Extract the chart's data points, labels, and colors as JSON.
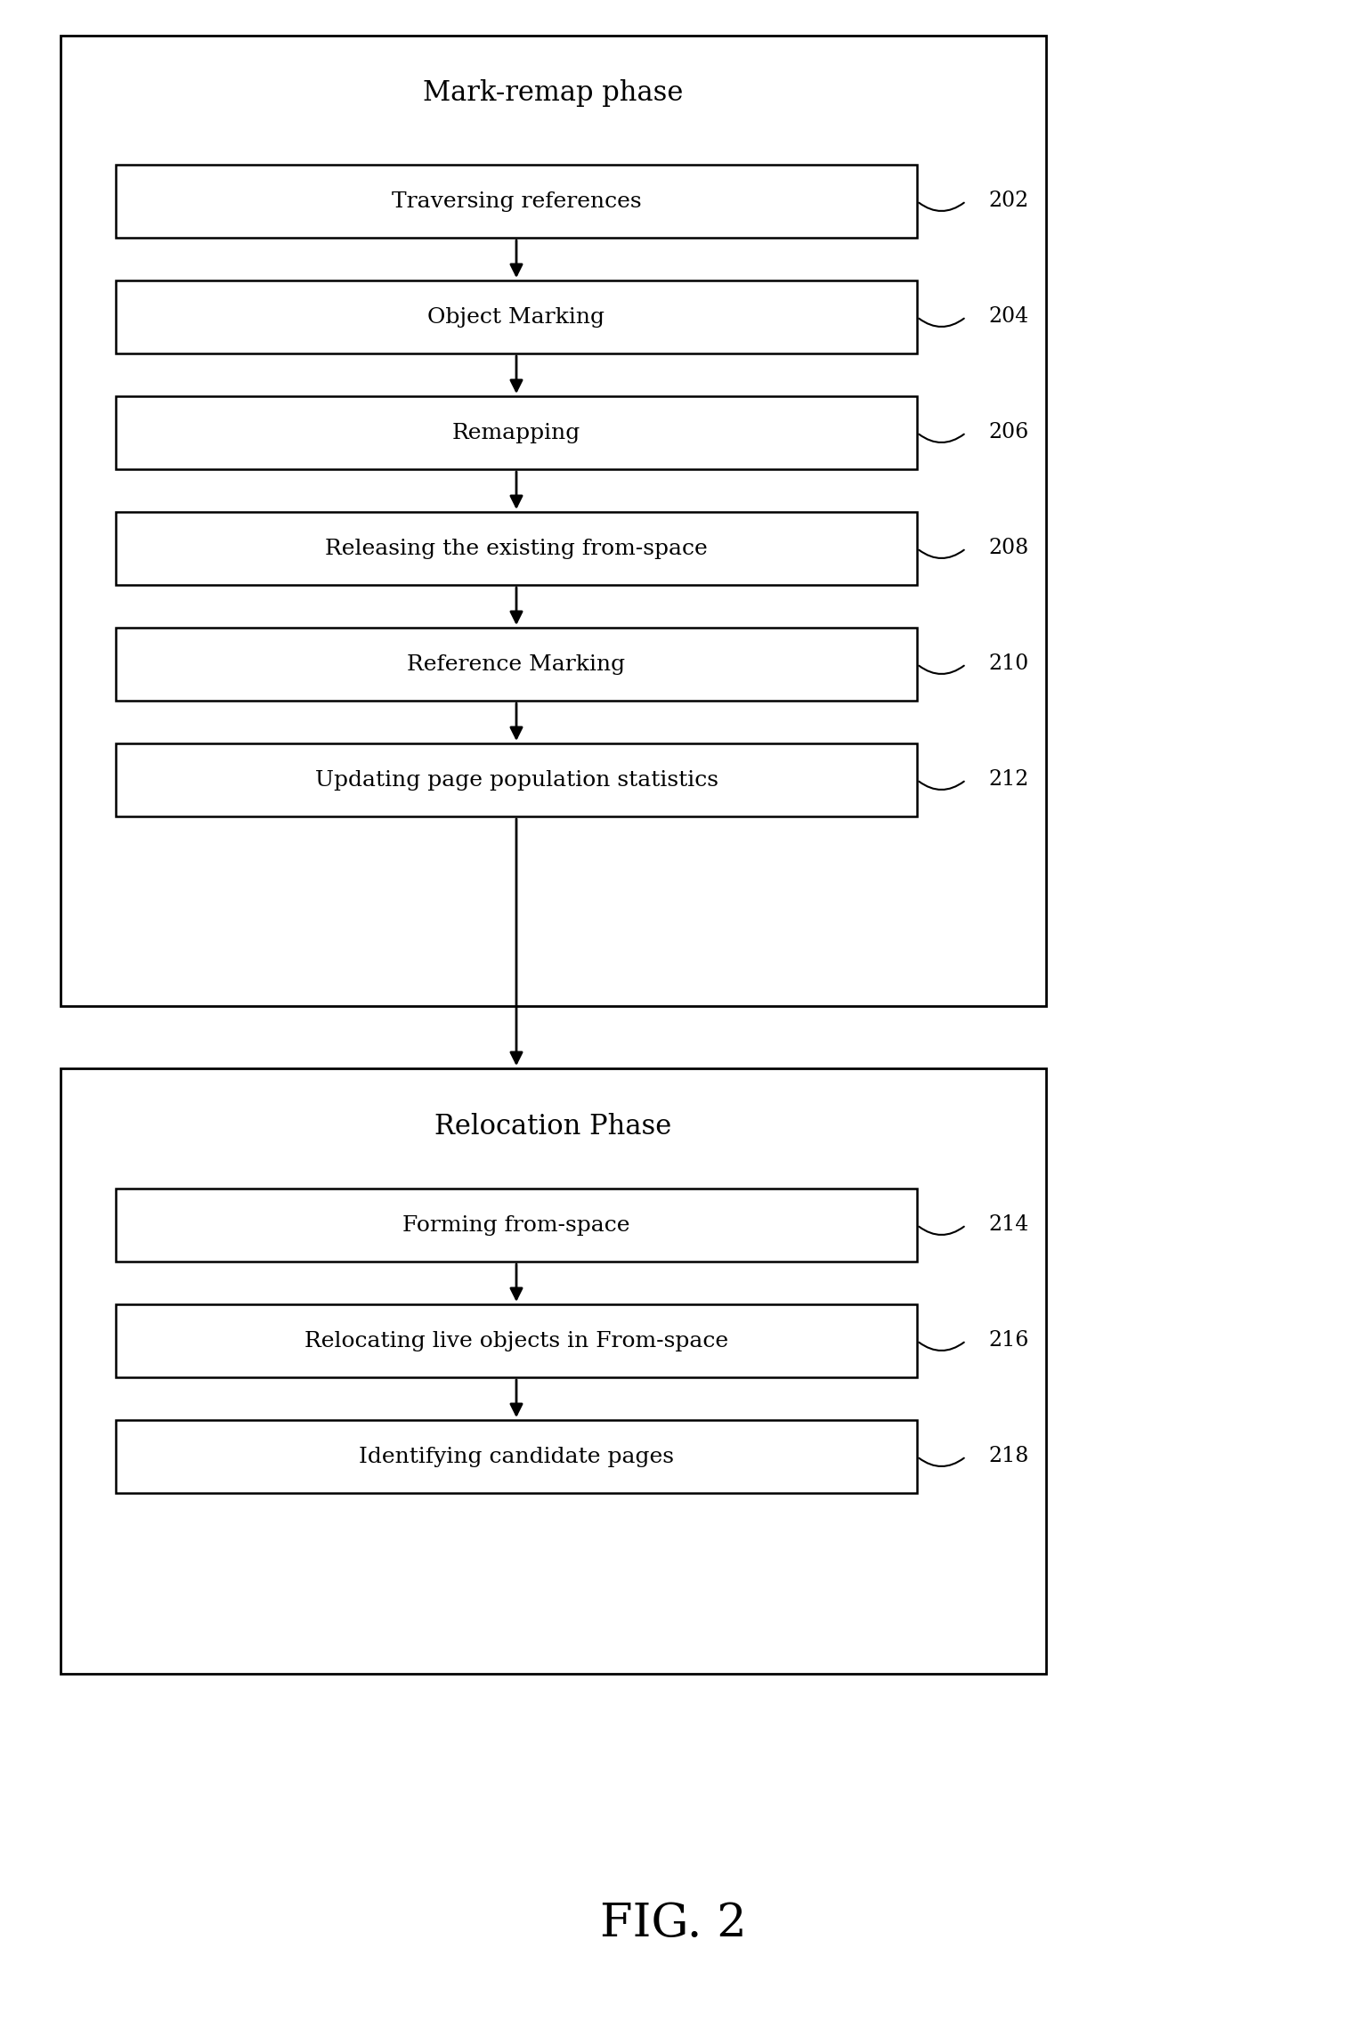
{
  "title": "FIG. 2",
  "phase1_label": "Mark-remap phase",
  "phase2_label": "Relocation Phase",
  "phase1_boxes": [
    {
      "label": "Traversing references",
      "ref": "202"
    },
    {
      "label": "Object Marking",
      "ref": "204"
    },
    {
      "label": "Remapping",
      "ref": "206"
    },
    {
      "label": "Releasing the existing from-space",
      "ref": "208"
    },
    {
      "label": "Reference Marking",
      "ref": "210"
    },
    {
      "label": "Updating page population statistics",
      "ref": "212"
    }
  ],
  "phase2_boxes": [
    {
      "label": "Forming from-space",
      "ref": "214"
    },
    {
      "label": "Relocating live objects in From-space",
      "ref": "216"
    },
    {
      "label": "Identifying candidate pages",
      "ref": "218"
    }
  ],
  "bg_color": "#ffffff",
  "box_fill": "#ffffff",
  "box_edge": "#000000",
  "phase_box_edge": "#000000",
  "text_color": "#000000",
  "arrow_color": "#000000",
  "ref_color": "#000000",
  "fig_width": 15.13,
  "fig_height": 22.79,
  "dpi": 100
}
